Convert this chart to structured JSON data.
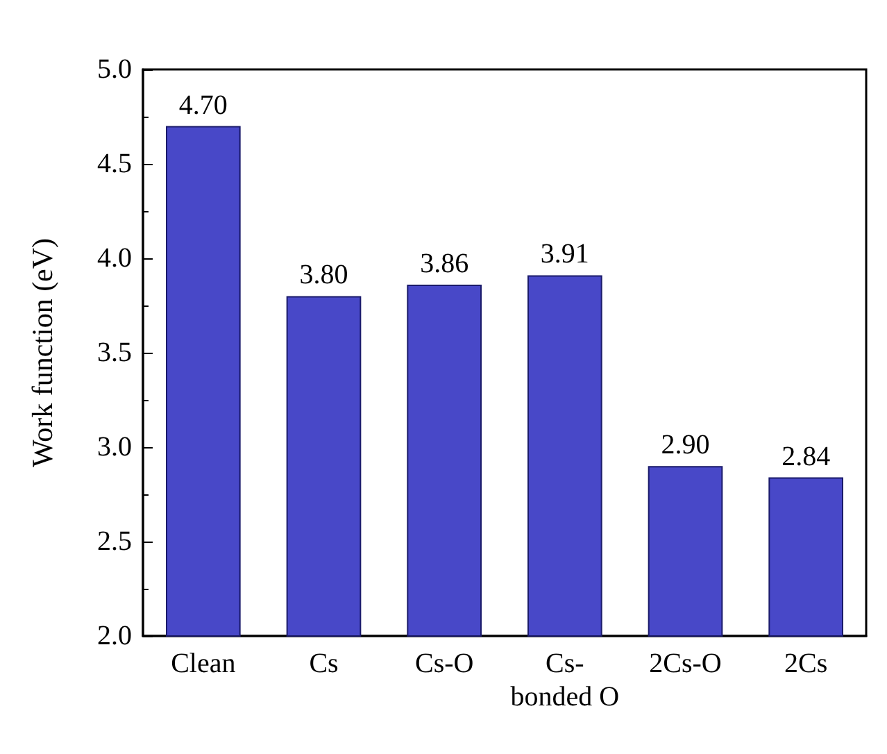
{
  "chart_data": {
    "type": "bar",
    "ylabel": "Work function (eV)",
    "categories": [
      "Clean",
      "Cs",
      "Cs-O",
      "Cs-\nbonded O",
      "2Cs-O",
      "2Cs"
    ],
    "values": [
      4.7,
      3.8,
      3.86,
      3.91,
      2.9,
      2.84
    ],
    "value_labels": [
      "4.70",
      "3.80",
      "3.86",
      "3.91",
      "2.90",
      "2.84"
    ],
    "color": "#4848c8",
    "ylim": [
      2.0,
      5.0
    ],
    "yticks": [
      {
        "value": 2,
        "label": "2.0"
      },
      {
        "value": 2.5,
        "label": "2.5"
      },
      {
        "value": 3,
        "label": "3.0"
      },
      {
        "value": 3.5,
        "label": "3.5"
      },
      {
        "value": 4,
        "label": "4.0"
      },
      {
        "value": 4.5,
        "label": "4.5"
      },
      {
        "value": 5,
        "label": "5.0"
      }
    ],
    "grid": false
  }
}
